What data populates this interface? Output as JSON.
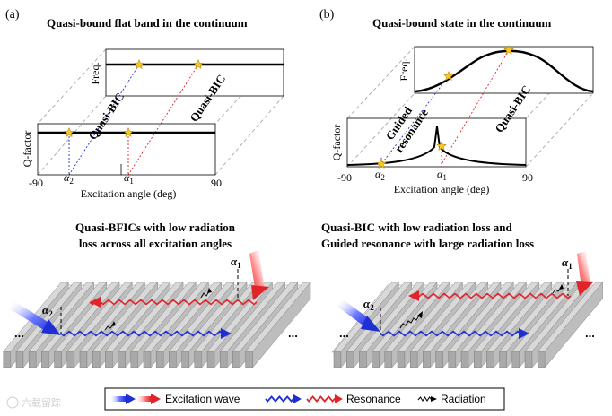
{
  "panel_a": {
    "label": "(a)",
    "title": "Quasi-bound flat band in the continuum",
    "freq_label": "Freq.",
    "q_label": "Q-factor",
    "x_label": "Excitation angle (deg)",
    "x_min": "-90",
    "x_max": "90",
    "alpha2": "α",
    "alpha2_sub": "2",
    "alpha1": "α",
    "alpha1_sub": "1",
    "tag_left": "Quasi-BIC",
    "tag_right": "Quasi-BIC",
    "desc_line1": "Quasi-BFICs with low radiation",
    "desc_line2": "loss across all excitation angles"
  },
  "panel_b": {
    "label": "(b)",
    "title": "Quasi-bound state in the continuum",
    "freq_label": "Freq.",
    "q_label": "Q-factor",
    "x_label": "Excitation angle (deg)",
    "x_min": "-90",
    "x_max": "90",
    "alpha2": "α",
    "alpha2_sub": "2",
    "alpha1": "α",
    "alpha1_sub": "1",
    "tag_left_line1": "Guided",
    "tag_left_line2": "resonance",
    "tag_right": "Quasi-BIC",
    "desc_line1": "Quasi-BIC with low radiation loss and",
    "desc_line2": "Guided resonance with large radiation loss"
  },
  "gratings": {
    "ellipsis": "..."
  },
  "legend": {
    "excitation": "Excitation wave",
    "resonance": "Resonance",
    "radiation": "Radiation"
  },
  "watermark": "六载留踪",
  "colors": {
    "blue": "#1f2fd6",
    "red": "#e0242a",
    "star": "#f6c824",
    "gray_guide": "#a8a8a8"
  }
}
